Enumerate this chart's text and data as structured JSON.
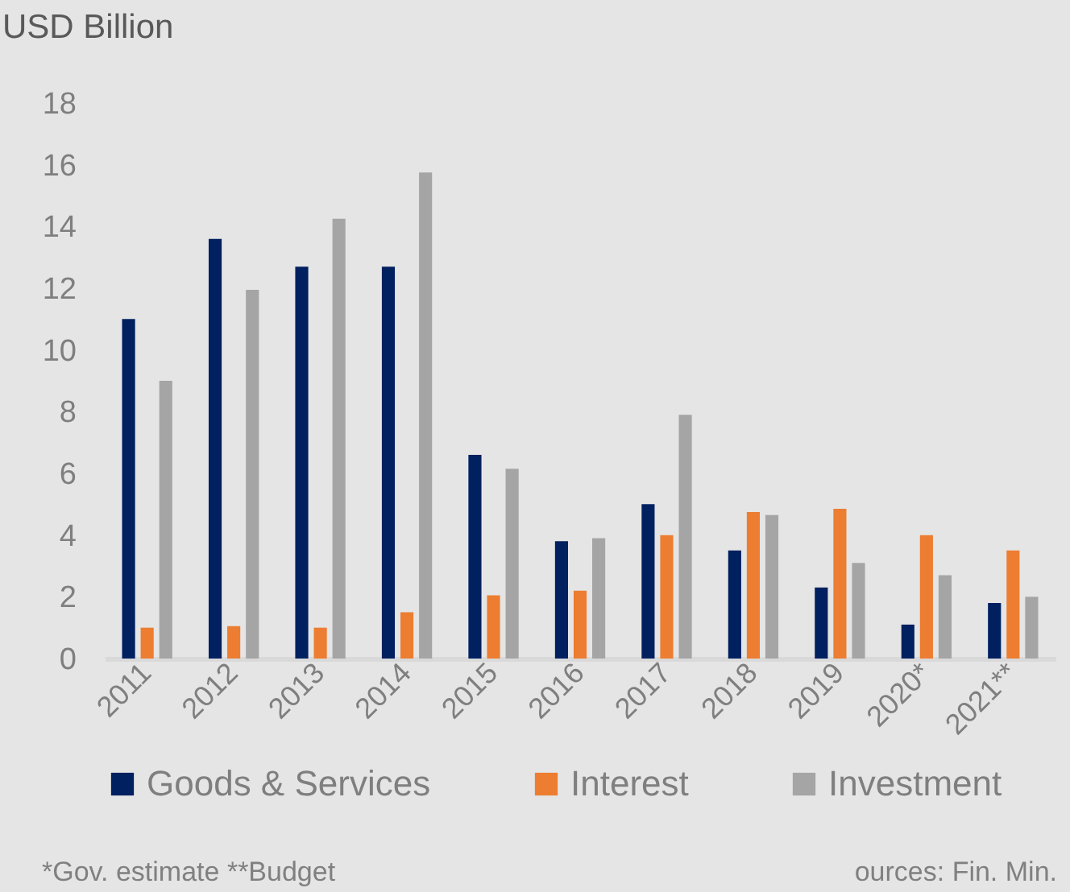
{
  "chart_data": {
    "type": "bar",
    "ylabel": "USD Billion",
    "categories": [
      "2011",
      "2012",
      "2013",
      "2014",
      "2015",
      "2016",
      "2017",
      "2018",
      "2019",
      "2020*",
      "2021**"
    ],
    "series": [
      {
        "name": "Goods & Services",
        "color": "#002060",
        "values": [
          11.0,
          13.6,
          12.7,
          12.7,
          6.6,
          3.8,
          5.0,
          3.5,
          2.3,
          1.1,
          1.8
        ]
      },
      {
        "name": "Interest",
        "color": "#ed7d31",
        "values": [
          1.0,
          1.05,
          1.0,
          1.5,
          2.05,
          2.2,
          4.0,
          4.75,
          4.85,
          4.0,
          3.5
        ]
      },
      {
        "name": "Investment",
        "color": "#a5a5a5",
        "values": [
          9.0,
          11.95,
          14.25,
          15.75,
          6.15,
          3.9,
          7.9,
          4.65,
          3.1,
          2.7,
          2.0
        ]
      }
    ],
    "ylim": [
      0,
      18
    ],
    "yticks": [
      0,
      2,
      4,
      6,
      8,
      10,
      12,
      14,
      16,
      18
    ],
    "grid": false,
    "legend": "bottom",
    "annotations": [
      "*Gov. estimate **Budget",
      "ources: Fin. Min."
    ]
  }
}
